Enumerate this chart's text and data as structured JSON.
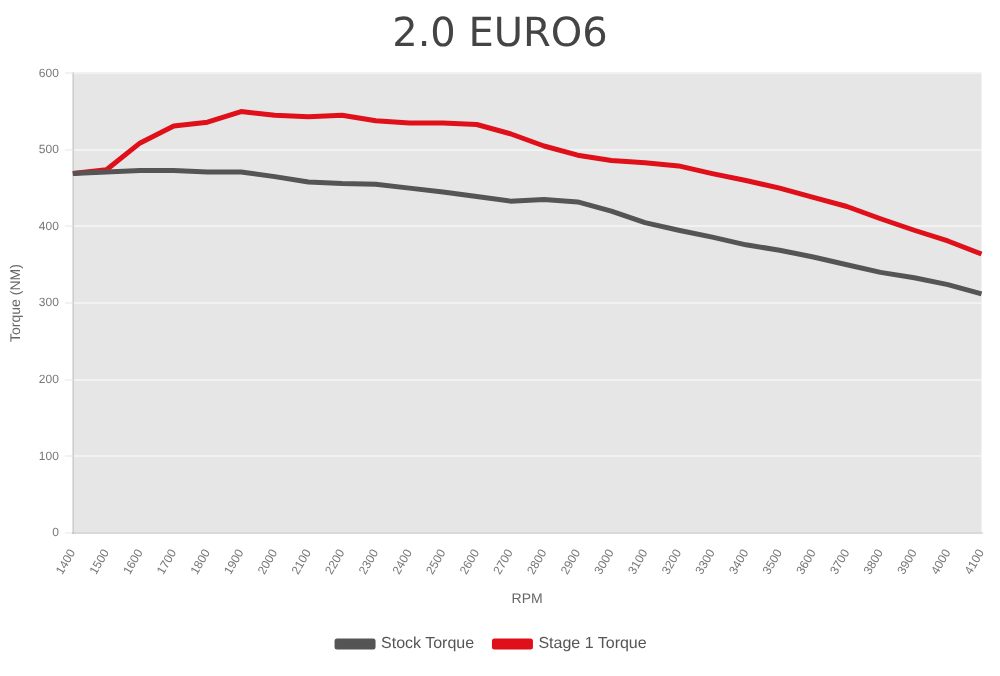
{
  "chart_data": {
    "type": "line",
    "title": "2.0 EURO6",
    "xlabel": "RPM",
    "ylabel": "Torque (NM)",
    "categories": [
      "1400",
      "1500",
      "1600",
      "1700",
      "1800",
      "1900",
      "2000",
      "2100",
      "2200",
      "2300",
      "2400",
      "2500",
      "2600",
      "2700",
      "2800",
      "2900",
      "3000",
      "3100",
      "3200",
      "3300",
      "3400",
      "3500",
      "3600",
      "3700",
      "3800",
      "3900",
      "4000",
      "4100"
    ],
    "series": [
      {
        "name": "Stock Torque",
        "color": "#555555",
        "values": [
          469,
          471,
          473,
          473,
          471,
          471,
          465,
          458,
          456,
          455,
          450,
          445,
          439,
          433,
          435,
          432,
          420,
          405,
          395,
          386,
          376,
          369,
          360,
          350,
          340,
          333,
          324,
          312
        ]
      },
      {
        "name": "Stage 1 Torque",
        "color": "#e0101a",
        "values": [
          469,
          474,
          509,
          531,
          536,
          550,
          545,
          543,
          545,
          538,
          535,
          535,
          533,
          521,
          505,
          493,
          486,
          483,
          479,
          469,
          460,
          450,
          438,
          426,
          410,
          395,
          381,
          364
        ]
      }
    ],
    "ylim": [
      0,
      600
    ],
    "yticks": [
      0,
      100,
      200,
      300,
      400,
      500,
      600
    ],
    "grid": "y",
    "legend": "bottom",
    "marker": "none",
    "line_style": "solid"
  }
}
